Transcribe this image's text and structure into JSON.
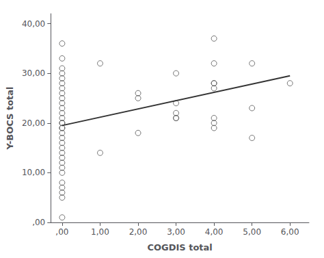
{
  "chart_data": {
    "type": "scatter",
    "xlabel": "COGDIS total",
    "ylabel": "Y-BOCS total",
    "series": [
      {
        "type": "scatter",
        "marker": "circle",
        "color": "#555555",
        "x": [
          0,
          0,
          0,
          0,
          0,
          0,
          0,
          0,
          0,
          0,
          0,
          0,
          0,
          0,
          0,
          0,
          0,
          0,
          0,
          0,
          0,
          0,
          0,
          0,
          0,
          0,
          0,
          0,
          0,
          0,
          0,
          1,
          1,
          2,
          2,
          2,
          3,
          3,
          3,
          3,
          3,
          4,
          4,
          4,
          4,
          4,
          4,
          4,
          4,
          5,
          5,
          5,
          6
        ],
        "values": [
          36,
          33,
          31,
          30,
          29,
          28,
          27,
          26,
          25,
          24,
          23,
          22,
          21,
          20,
          20,
          19,
          19,
          18,
          17,
          16,
          15,
          14,
          13,
          12,
          11,
          10,
          8,
          7,
          6,
          5,
          1,
          14,
          32,
          18,
          25,
          26,
          24,
          22,
          21,
          21,
          30,
          37,
          32,
          28,
          28,
          27,
          21,
          20,
          19,
          32,
          23,
          17,
          28
        ]
      },
      {
        "type": "line",
        "line_style": "solid",
        "color": "#333333",
        "x": [
          0,
          6
        ],
        "values": [
          19.5,
          29.5
        ]
      }
    ],
    "xlim": [
      -0.3,
      6.5
    ],
    "ylim": [
      0,
      42
    ],
    "xticks": [
      {
        "value": 0,
        "label": ",00"
      },
      {
        "value": 1,
        "label": "1,00"
      },
      {
        "value": 2,
        "label": "2,00"
      },
      {
        "value": 3,
        "label": "3,00"
      },
      {
        "value": 4,
        "label": "4,00"
      },
      {
        "value": 5,
        "label": "5,00"
      },
      {
        "value": 6,
        "label": "6,00"
      }
    ],
    "yticks": [
      {
        "value": 0,
        "label": ",00"
      },
      {
        "value": 10,
        "label": "10,00"
      },
      {
        "value": 20,
        "label": "20,00"
      },
      {
        "value": 30,
        "label": "30,00"
      },
      {
        "value": 40,
        "label": "40,00"
      }
    ],
    "grid": false
  }
}
